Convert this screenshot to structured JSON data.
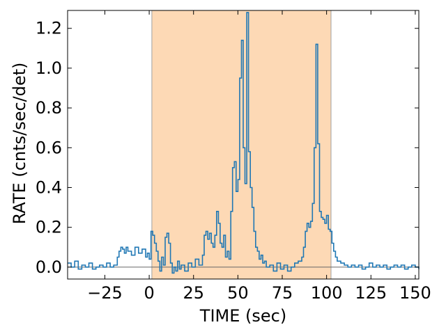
{
  "chart_data": {
    "type": "line",
    "title": "",
    "xlabel": "TIME (sec)",
    "ylabel": "RATE (cnts/sec/det)",
    "xlim": [
      -46,
      152
    ],
    "ylim": [
      -0.06,
      1.29
    ],
    "grid": false,
    "x_ticks": [
      -25,
      0,
      25,
      50,
      75,
      100,
      125,
      150
    ],
    "x_tick_labels": [
      "−25",
      "0",
      "25",
      "50",
      "75",
      "100",
      "125",
      "150"
    ],
    "y_ticks": [
      0.0,
      0.2,
      0.4,
      0.6,
      0.8,
      1.0,
      1.2
    ],
    "y_tick_labels": [
      "0.0",
      "0.2",
      "0.4",
      "0.6",
      "0.8",
      "1.0",
      "1.2"
    ],
    "shaded_interval": [
      1.5,
      102.5
    ],
    "baseline_y": 0.0,
    "series": [
      {
        "color": "#1f77b4",
        "style": "step",
        "x": [
          -46,
          -44,
          -42,
          -40,
          -38,
          -36,
          -34,
          -32,
          -30,
          -28,
          -26,
          -24,
          -22,
          -20,
          -18,
          -17,
          -16,
          -15,
          -14,
          -13,
          -12,
          -10,
          -8,
          -6,
          -4,
          -2,
          -1,
          0,
          1,
          2,
          3,
          4,
          5,
          6,
          7,
          8,
          9,
          10,
          11,
          12,
          13,
          14,
          15,
          16,
          17,
          18,
          20,
          22,
          24,
          26,
          28,
          30,
          31,
          32,
          33,
          34,
          35,
          36,
          37,
          38,
          39,
          40,
          41,
          42,
          43,
          44,
          45,
          46,
          47,
          48,
          49,
          50,
          51,
          52,
          53,
          54,
          55,
          56,
          57,
          58,
          59,
          60,
          61,
          62,
          63,
          64,
          65,
          66,
          68,
          70,
          72,
          74,
          76,
          78,
          80,
          82,
          84,
          86,
          87,
          88,
          89,
          90,
          91,
          92,
          93,
          94,
          95,
          96,
          97,
          98,
          99,
          100,
          101,
          102,
          103,
          104,
          105,
          106,
          108,
          110,
          112,
          114,
          116,
          118,
          120,
          122,
          124,
          126,
          128,
          130,
          132,
          134,
          136,
          138,
          140,
          142,
          144,
          146,
          148,
          150,
          152
        ],
        "y": [
          0.02,
          0.0,
          0.03,
          -0.01,
          0.01,
          0.0,
          0.02,
          -0.01,
          0.0,
          0.01,
          0.0,
          0.02,
          0.0,
          0.01,
          0.05,
          0.08,
          0.1,
          0.09,
          0.07,
          0.1,
          0.08,
          0.06,
          0.1,
          0.07,
          0.09,
          0.05,
          0.07,
          0.04,
          0.18,
          0.16,
          0.12,
          0.08,
          0.03,
          -0.02,
          0.05,
          0.01,
          0.15,
          0.17,
          0.12,
          0.02,
          -0.03,
          0.0,
          -0.02,
          0.03,
          -0.01,
          0.01,
          -0.02,
          0.02,
          0.0,
          0.04,
          0.01,
          0.06,
          0.16,
          0.18,
          0.14,
          0.17,
          0.12,
          0.1,
          0.16,
          0.28,
          0.22,
          0.12,
          0.1,
          0.16,
          0.05,
          0.08,
          0.04,
          0.28,
          0.5,
          0.53,
          0.38,
          0.44,
          0.95,
          1.14,
          0.6,
          0.42,
          1.28,
          0.58,
          0.4,
          0.3,
          0.18,
          0.1,
          0.08,
          0.04,
          0.06,
          0.02,
          0.03,
          0.0,
          0.01,
          -0.02,
          0.02,
          -0.01,
          0.01,
          -0.02,
          0.0,
          0.02,
          0.03,
          0.05,
          0.1,
          0.18,
          0.22,
          0.2,
          0.23,
          0.32,
          0.6,
          1.12,
          0.62,
          0.28,
          0.25,
          0.24,
          0.22,
          0.26,
          0.19,
          0.18,
          0.12,
          0.08,
          0.05,
          0.03,
          0.02,
          0.01,
          0.0,
          0.01,
          0.0,
          0.01,
          -0.01,
          0.0,
          0.02,
          0.0,
          0.01,
          0.0,
          0.01,
          -0.01,
          0.0,
          0.01,
          0.0,
          0.01,
          -0.01,
          0.0,
          0.01,
          0.0,
          -0.01
        ]
      }
    ]
  }
}
